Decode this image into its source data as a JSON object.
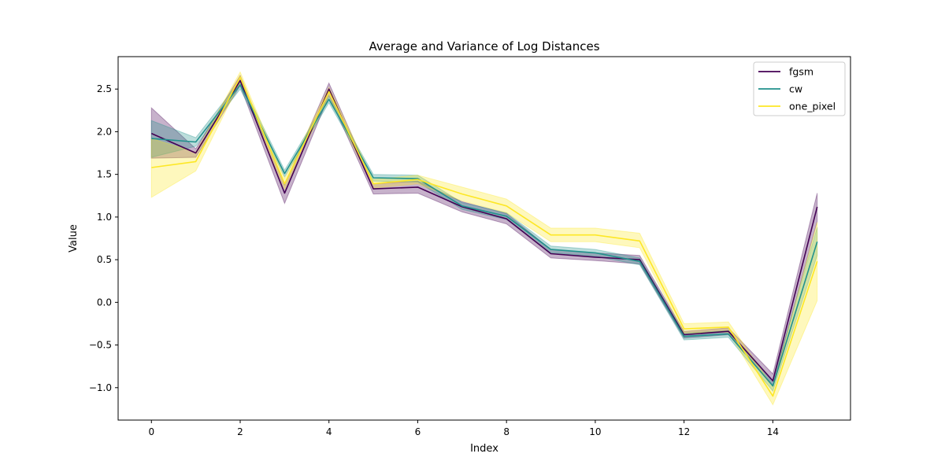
{
  "chart_data": {
    "type": "line",
    "title": "Average and Variance of Log Distances",
    "xlabel": "Index",
    "ylabel": "Value",
    "xlim": [
      -0.75,
      15.75
    ],
    "ylim": [
      -1.38,
      2.88
    ],
    "xticks": [
      0,
      2,
      4,
      6,
      8,
      10,
      12,
      14
    ],
    "xtick_labels": [
      "0",
      "2",
      "4",
      "6",
      "8",
      "10",
      "12",
      "14"
    ],
    "yticks": [
      -1.0,
      -0.5,
      0.0,
      0.5,
      1.0,
      1.5,
      2.0,
      2.5
    ],
    "ytick_labels": [
      "−1.0",
      "−0.5",
      "0.0",
      "0.5",
      "1.0",
      "1.5",
      "2.0",
      "2.5"
    ],
    "grid": false,
    "legend_position": "top-right",
    "x": [
      0,
      1,
      2,
      3,
      4,
      5,
      6,
      7,
      8,
      9,
      10,
      11,
      12,
      13,
      14,
      15
    ],
    "series": [
      {
        "name": "fgsm",
        "color": "#440154",
        "values": [
          1.98,
          1.75,
          2.6,
          1.28,
          2.5,
          1.33,
          1.35,
          1.12,
          0.98,
          0.57,
          0.53,
          0.5,
          -0.38,
          -0.34,
          -0.92,
          1.12
        ],
        "lower": [
          1.69,
          1.7,
          2.54,
          1.16,
          2.42,
          1.27,
          1.28,
          1.06,
          0.92,
          0.52,
          0.49,
          0.45,
          -0.42,
          -0.38,
          -0.98,
          0.95
        ],
        "upper": [
          2.28,
          1.8,
          2.66,
          1.38,
          2.57,
          1.39,
          1.42,
          1.18,
          1.04,
          0.62,
          0.58,
          0.55,
          -0.34,
          -0.3,
          -0.84,
          1.28
        ]
      },
      {
        "name": "cw",
        "color": "#21918c",
        "values": [
          1.92,
          1.88,
          2.55,
          1.51,
          2.38,
          1.46,
          1.45,
          1.13,
          1.01,
          0.62,
          0.58,
          0.48,
          -0.4,
          -0.37,
          -0.98,
          0.71
        ],
        "lower": [
          1.7,
          1.83,
          2.5,
          1.47,
          2.34,
          1.42,
          1.41,
          1.09,
          0.97,
          0.58,
          0.54,
          0.44,
          -0.44,
          -0.41,
          -1.04,
          0.55
        ],
        "upper": [
          2.13,
          1.93,
          2.6,
          1.55,
          2.42,
          1.5,
          1.49,
          1.17,
          1.05,
          0.66,
          0.62,
          0.52,
          -0.36,
          -0.33,
          -0.92,
          0.88
        ]
      },
      {
        "name": "one_pixel",
        "color": "#fde725",
        "values": [
          1.58,
          1.65,
          2.64,
          1.39,
          2.47,
          1.39,
          1.44,
          1.27,
          1.13,
          0.79,
          0.79,
          0.72,
          -0.31,
          -0.29,
          -1.1,
          0.48
        ],
        "lower": [
          1.23,
          1.54,
          2.58,
          1.33,
          2.42,
          1.34,
          1.39,
          1.19,
          1.05,
          0.71,
          0.71,
          0.64,
          -0.36,
          -0.35,
          -1.2,
          0.02
        ],
        "upper": [
          1.92,
          1.76,
          2.7,
          1.45,
          2.52,
          1.44,
          1.49,
          1.35,
          1.21,
          0.87,
          0.87,
          0.81,
          -0.25,
          -0.23,
          -0.99,
          0.94
        ]
      }
    ]
  }
}
